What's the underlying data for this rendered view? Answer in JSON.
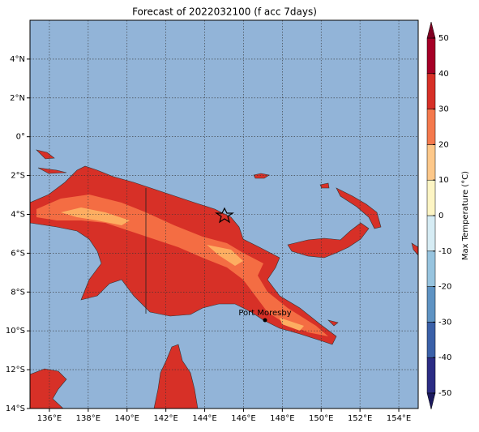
{
  "chart_data": {
    "type": "map",
    "title": "Forecast of 2022032100 (f acc 7days)",
    "xlim": [
      135,
      155
    ],
    "ylim": [
      -14,
      6
    ],
    "xticks": [
      {
        "value": 136,
        "label": "136°E"
      },
      {
        "value": 138,
        "label": "138°E"
      },
      {
        "value": 140,
        "label": "140°E"
      },
      {
        "value": 142,
        "label": "142°E"
      },
      {
        "value": 144,
        "label": "144°E"
      },
      {
        "value": 146,
        "label": "146°E"
      },
      {
        "value": 148,
        "label": "148°E"
      },
      {
        "value": 150,
        "label": "150°E"
      },
      {
        "value": 152,
        "label": "152°E"
      },
      {
        "value": 154,
        "label": "154°E"
      }
    ],
    "yticks": [
      {
        "value": -14,
        "label": "14°S"
      },
      {
        "value": -12,
        "label": "12°S"
      },
      {
        "value": -10,
        "label": "10°S"
      },
      {
        "value": -8,
        "label": "8°S"
      },
      {
        "value": -6,
        "label": "6°S"
      },
      {
        "value": -4,
        "label": "4°S"
      },
      {
        "value": -2,
        "label": "2°S"
      },
      {
        "value": 0,
        "label": "0°"
      },
      {
        "value": 2,
        "label": "2°N"
      },
      {
        "value": 4,
        "label": "4°N"
      }
    ],
    "grid": true,
    "annotation": "Port Moresby",
    "colorbar": {
      "label": "Max Temperature (°C)",
      "lim": [
        -50,
        50
      ],
      "ticks": [
        -50,
        -40,
        -30,
        -20,
        -10,
        0,
        10,
        20,
        30,
        40,
        50
      ],
      "colors": [
        "#2b2c84",
        "#3a60a8",
        "#5e93c3",
        "#97c4df",
        "#d6ecf4",
        "#fdf5c4",
        "#fdc88a",
        "#f4794d",
        "#d73027",
        "#a50026"
      ],
      "under": "#1c1a5e",
      "over": "#7f0022"
    }
  }
}
